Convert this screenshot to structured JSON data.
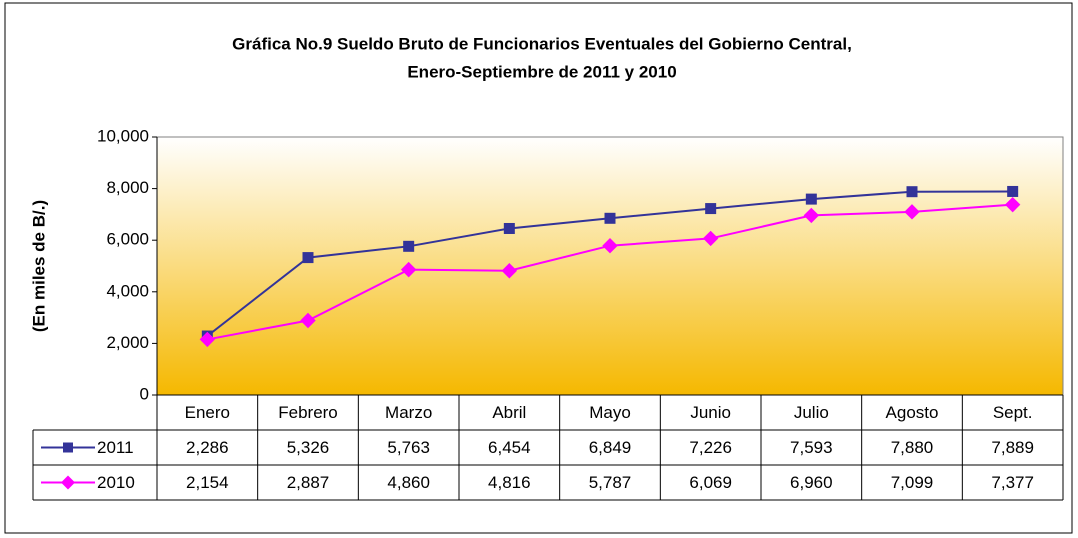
{
  "chart_data": {
    "type": "line",
    "title": [
      "Gráfica No.9 Sueldo Bruto de Funcionarios Eventuales del Gobierno Central,",
      "Enero-Septiembre de 2011 y 2010"
    ],
    "ylabel": "(En miles de B/.)",
    "categories": [
      "Enero",
      "Febrero",
      "Marzo",
      "Abril",
      "Mayo",
      "Junio",
      "Julio",
      "Agosto",
      "Sept."
    ],
    "series": [
      {
        "name": "2011",
        "color": "#333399",
        "marker": "square",
        "values": [
          2286,
          5326,
          5763,
          6454,
          6849,
          7226,
          7593,
          7880,
          7889
        ],
        "value_labels": [
          "2,286",
          "5,326",
          "5,763",
          "6,454",
          "6,849",
          "7,226",
          "7,593",
          "7,880",
          "7,889"
        ]
      },
      {
        "name": "2010",
        "color": "#ff00ff",
        "marker": "diamond",
        "values": [
          2154,
          2887,
          4860,
          4816,
          5787,
          6069,
          6960,
          7099,
          7377
        ],
        "value_labels": [
          "2,154",
          "2,887",
          "4,860",
          "4,816",
          "5,787",
          "6,069",
          "6,960",
          "7,099",
          "7,377"
        ]
      }
    ],
    "ylim": [
      0,
      10000
    ],
    "yticks": [
      0,
      {
        "value": 2000,
        "label": "2,000"
      },
      {
        "value": 4000,
        "label": "4,000"
      },
      {
        "value": 6000,
        "label": "6,000"
      },
      {
        "value": 8000,
        "label": "8,000"
      },
      {
        "value": 10000,
        "label": "10,000"
      }
    ],
    "grid": false
  }
}
